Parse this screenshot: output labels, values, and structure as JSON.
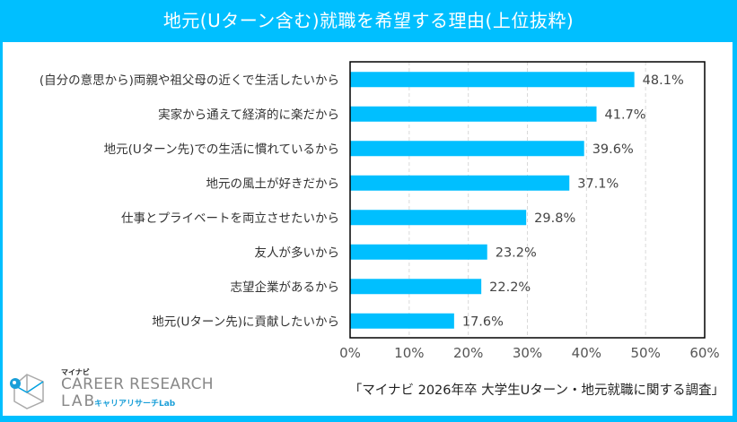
{
  "header": {
    "title": "地元(Uターン含む)就職を希望する理由(上位抜粋)"
  },
  "colors": {
    "accent": "#00bfff",
    "bar": "#00bfff",
    "grid": "#d9d9d9"
  },
  "chart_data": {
    "type": "bar",
    "orientation": "horizontal",
    "title": "地元(Uターン含む)就職を希望する理由(上位抜粋)",
    "categories": [
      "(自分の意思から)両親や祖父母の近くで生活したいから",
      "実家から通えて経済的に楽だから",
      "地元(Uターン先)での生活に慣れているから",
      "地元の風土が好きだから",
      "仕事とプライベートを両立させたいから",
      "友人が多いから",
      "志望企業があるから",
      "地元(Uターン先)に貢献したいから"
    ],
    "values": [
      48.1,
      41.7,
      39.6,
      37.1,
      29.8,
      23.2,
      22.2,
      17.6
    ],
    "value_labels": [
      "48.1%",
      "41.7%",
      "39.6%",
      "37.1%",
      "29.8%",
      "23.2%",
      "22.2%",
      "17.6%"
    ],
    "xlim": [
      0,
      60
    ],
    "xticks": [
      0,
      10,
      20,
      30,
      40,
      50,
      60
    ],
    "xtick_labels": [
      "0%",
      "10%",
      "20%",
      "30%",
      "40%",
      "50%",
      "60%"
    ],
    "xlabel": "",
    "ylabel": "",
    "grid": "vertical dashed",
    "legend": "none"
  },
  "footer": {
    "source": "「マイナビ 2026年卒 大学生Uターン・地元就職に関する調査」",
    "logo": {
      "brand": "マイナビ",
      "line1": "CAREER RESEARCH",
      "line2": "LAB",
      "sub": "キャリアリサーチLab"
    }
  }
}
